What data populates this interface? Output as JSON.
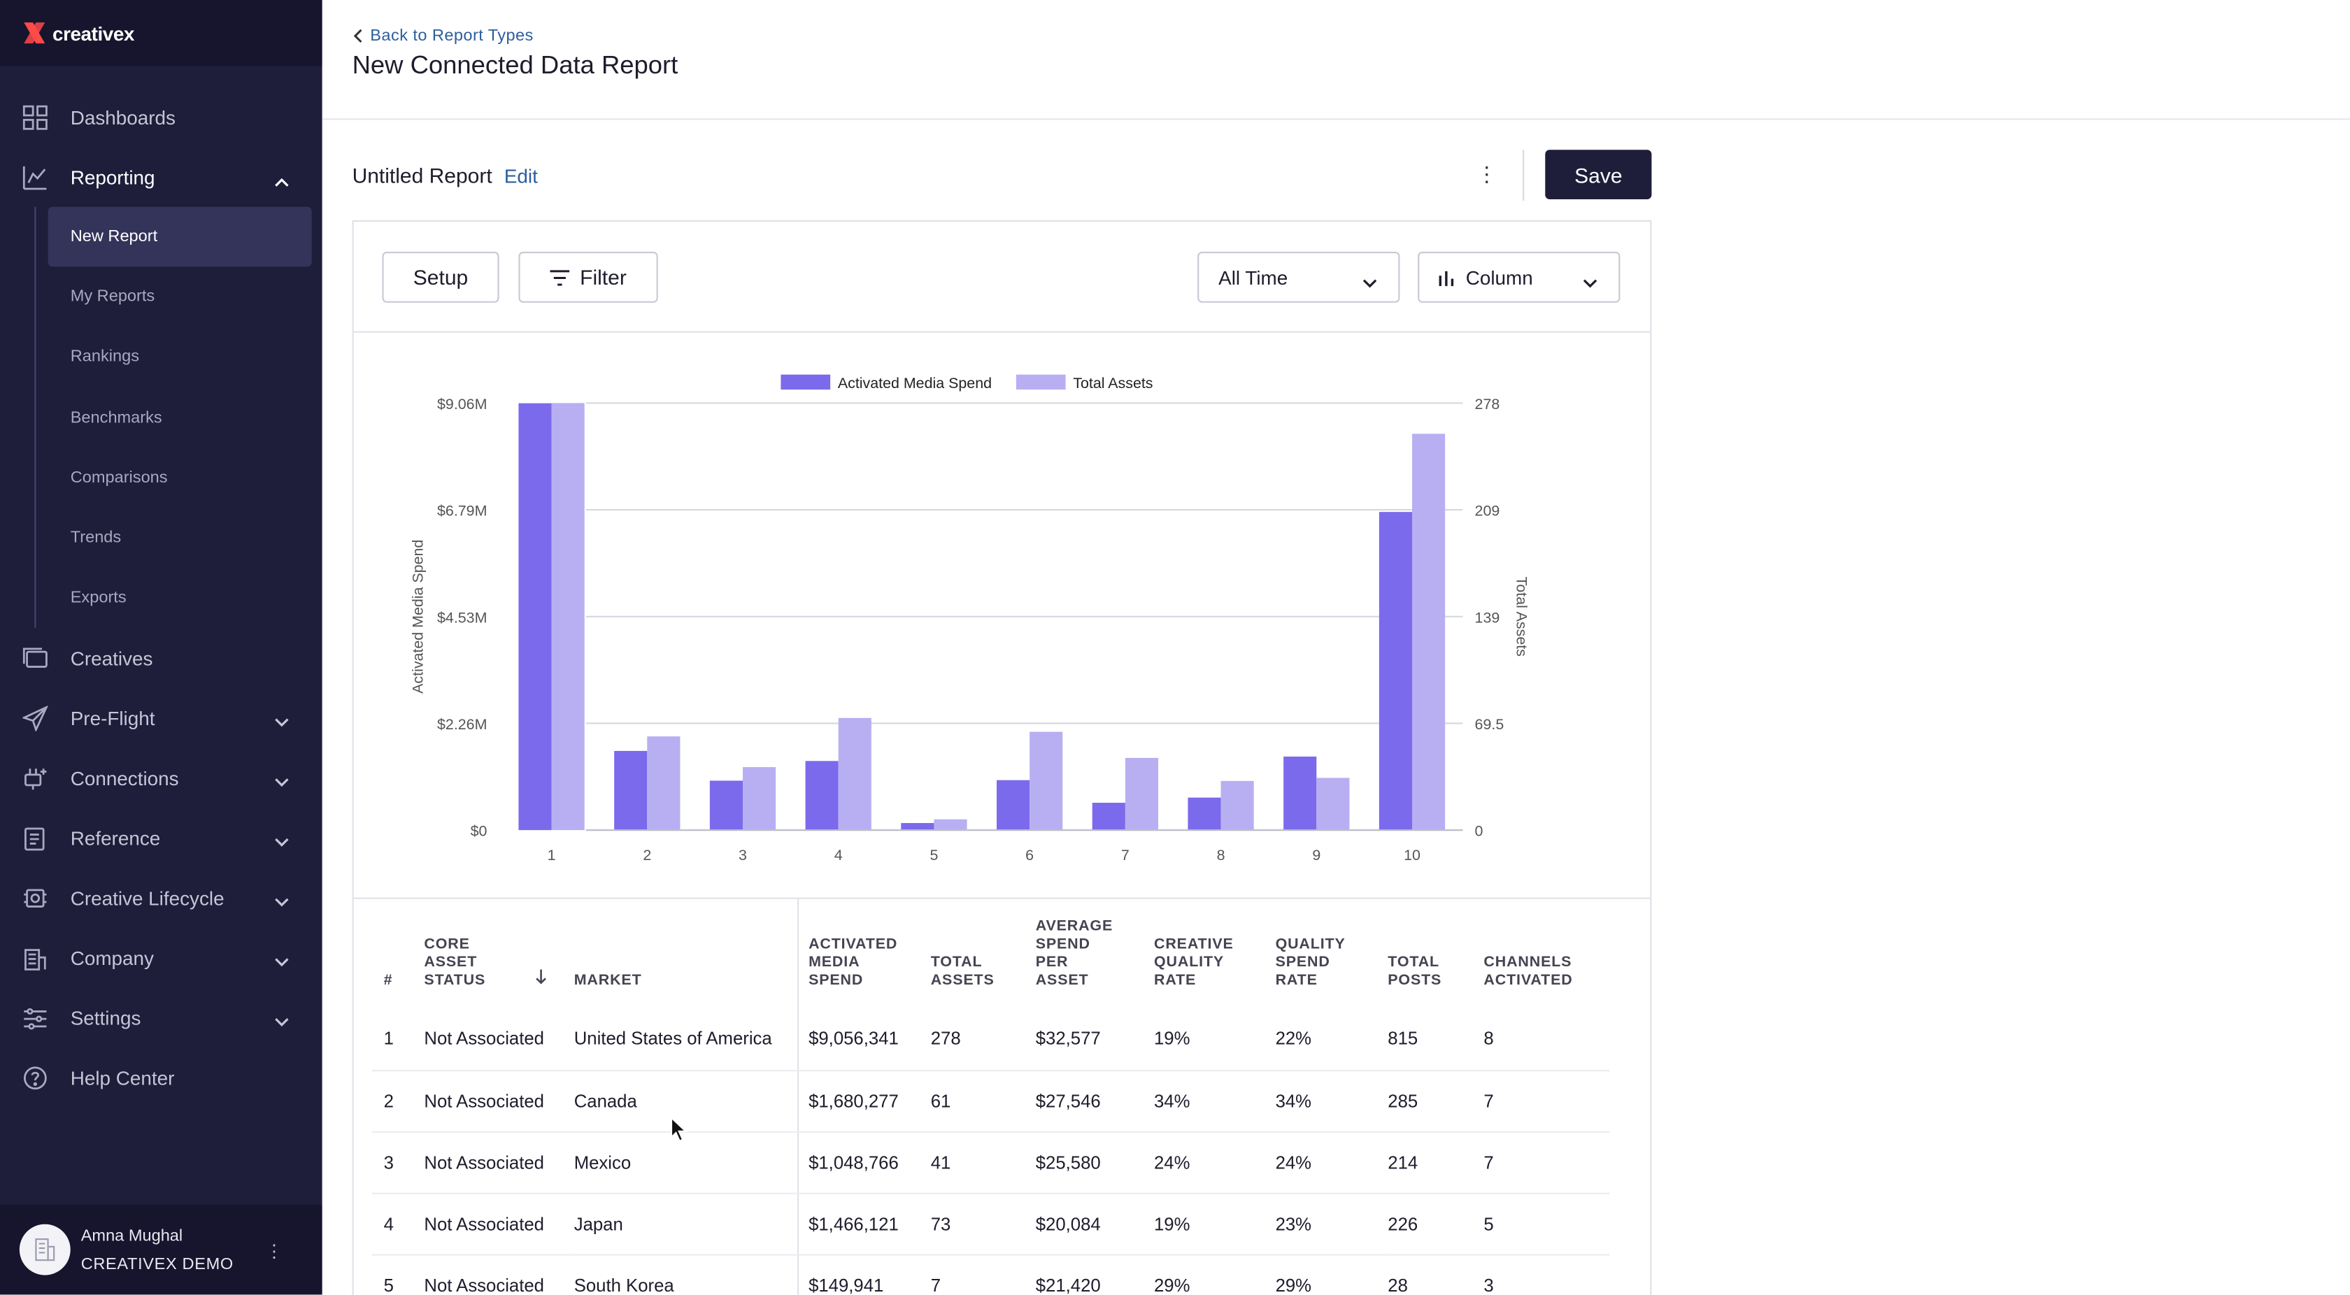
{
  "brand": {
    "name": "creativex"
  },
  "sidebar": {
    "items": [
      {
        "label": "Dashboards",
        "icon": "dashboard-grid-icon"
      },
      {
        "label": "Reporting",
        "icon": "reporting-chart-icon",
        "expanded": true
      },
      {
        "label": "Creatives",
        "icon": "creatives-stack-icon"
      },
      {
        "label": "Pre-Flight",
        "icon": "paper-plane-icon"
      },
      {
        "label": "Connections",
        "icon": "plug-icon"
      },
      {
        "label": "Reference",
        "icon": "clipboard-icon"
      },
      {
        "label": "Creative Lifecycle",
        "icon": "lifecycle-icon"
      },
      {
        "label": "Company",
        "icon": "building-icon"
      },
      {
        "label": "Settings",
        "icon": "sliders-icon"
      },
      {
        "label": "Help Center",
        "icon": "help-circle-icon"
      }
    ],
    "reporting_sub": [
      "New Report",
      "My Reports",
      "Rankings",
      "Benchmarks",
      "Comparisons",
      "Trends",
      "Exports"
    ],
    "active_sub": "New Report"
  },
  "user": {
    "name": "Amna Mughal",
    "org": "CREATIVEX DEMO"
  },
  "header": {
    "back_label": "Back to Report Types",
    "title": "New Connected Data Report"
  },
  "report": {
    "name": "Untitled Report",
    "edit_label": "Edit",
    "save_label": "Save"
  },
  "toolbar": {
    "setup_label": "Setup",
    "filter_label": "Filter",
    "time_range": "All Time",
    "chart_type": "Column"
  },
  "colors": {
    "sidebar_bg": "#1e1d3a",
    "series1": "#7b6aeb",
    "series2": "#b8aff2",
    "link": "#2c5e9e"
  },
  "chart_data": {
    "type": "bar",
    "categories": [
      "1",
      "2",
      "3",
      "4",
      "5",
      "6",
      "7",
      "8",
      "9",
      "10"
    ],
    "series": [
      {
        "name": "Activated Media Spend",
        "axis": "left",
        "values": [
          9056341,
          1680277,
          1048766,
          1466121,
          149941,
          1060000,
          580000,
          690000,
          1560000,
          6750000
        ]
      },
      {
        "name": "Total Assets",
        "axis": "right",
        "values": [
          278,
          61,
          41,
          73,
          7,
          64,
          47,
          32,
          34,
          258
        ]
      }
    ],
    "left_axis": {
      "label": "Activated Media Spend",
      "ticks": [
        "$0",
        "$2.26M",
        "$4.53M",
        "$6.79M",
        "$9.06M"
      ],
      "max": 9060000
    },
    "right_axis": {
      "label": "Total Assets",
      "ticks": [
        "0",
        "69.5",
        "139",
        "209",
        "278"
      ],
      "max": 278
    },
    "legend": "top-center",
    "grid": true
  },
  "table": {
    "headers": [
      "#",
      "CORE ASSET STATUS",
      "MARKET",
      "ACTIVATED MEDIA SPEND",
      "TOTAL ASSETS",
      "AVERAGE SPEND PER ASSET",
      "CREATIVE QUALITY RATE",
      "QUALITY SPEND RATE",
      "TOTAL POSTS",
      "CHANNELS ACTIVATED"
    ],
    "rows": [
      [
        "1",
        "Not Associated",
        "United States of America",
        "$9,056,341",
        "278",
        "$32,577",
        "19%",
        "22%",
        "815",
        "8"
      ],
      [
        "2",
        "Not Associated",
        "Canada",
        "$1,680,277",
        "61",
        "$27,546",
        "34%",
        "34%",
        "285",
        "7"
      ],
      [
        "3",
        "Not Associated",
        "Mexico",
        "$1,048,766",
        "41",
        "$25,580",
        "24%",
        "24%",
        "214",
        "7"
      ],
      [
        "4",
        "Not Associated",
        "Japan",
        "$1,466,121",
        "73",
        "$20,084",
        "19%",
        "23%",
        "226",
        "5"
      ],
      [
        "5",
        "Not Associated",
        "South Korea",
        "$149,941",
        "7",
        "$21,420",
        "29%",
        "29%",
        "28",
        "3"
      ]
    ]
  }
}
